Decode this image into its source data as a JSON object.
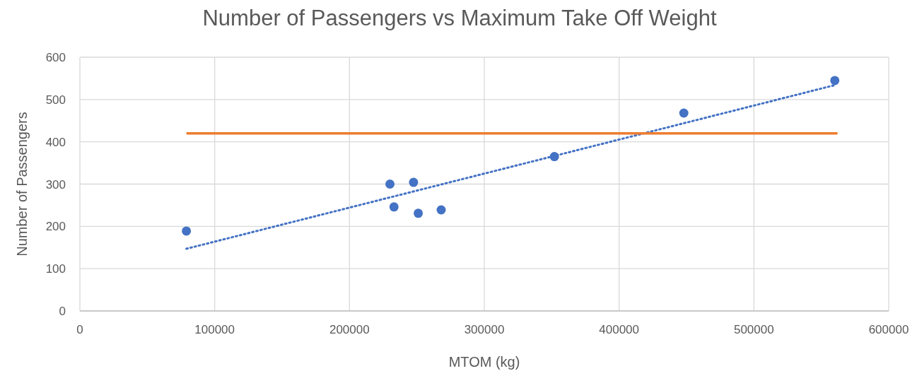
{
  "chart_data": {
    "type": "scatter",
    "title": "Number of Passengers vs Maximum Take Off Weight",
    "xlabel": "MTOM (kg)",
    "ylabel": "Number of Passengers",
    "xlim": [
      0,
      600000
    ],
    "xticks": [
      0,
      100000,
      200000,
      300000,
      400000,
      500000,
      600000
    ],
    "ylim": [
      0,
      600
    ],
    "yticks": [
      0,
      100,
      200,
      300,
      400,
      500,
      600
    ],
    "grid": true,
    "series": [
      {
        "color": "#4472c4",
        "marker": "circle",
        "x": [
          79000,
          230000,
          233000,
          247500,
          251000,
          268000,
          352000,
          448000,
          560000
        ],
        "values": [
          189,
          300,
          246,
          304,
          231,
          239,
          365,
          468,
          545
        ]
      },
      {
        "type": "line",
        "color": "#4472c4",
        "line_style": "dotted",
        "marker": "none",
        "x": [
          79000,
          560000
        ],
        "values": [
          147,
          534
        ]
      },
      {
        "type": "line",
        "color": "#ed7d31",
        "line_style": "solid",
        "marker": "none",
        "x": [
          79000,
          562000
        ],
        "values": [
          420,
          420
        ]
      }
    ]
  }
}
